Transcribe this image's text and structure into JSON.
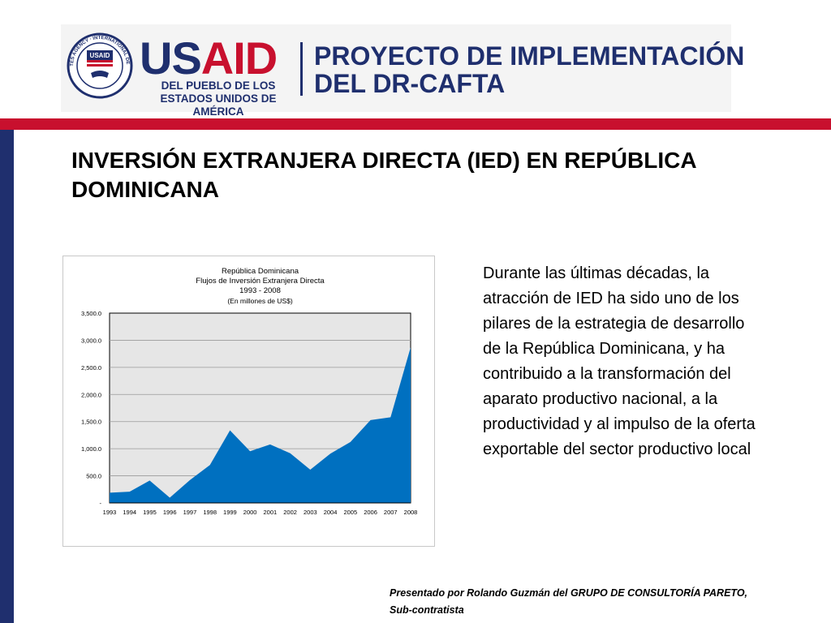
{
  "header": {
    "seal_text": "UNITED STATES AGENCY · INTERNATIONAL DEVELOPMENT",
    "seal_inner": "USAID",
    "logo_us": "US",
    "logo_aid": "AID",
    "logo_tagline": "DEL PUEBLO DE LOS ESTADOS UNIDOS DE AMÉRICA",
    "project_line1": "PROYECTO DE IMPLEMENTACIÓN",
    "project_line2": "DEL DR-CAFTA"
  },
  "slide": {
    "title": "INVERSIÓN EXTRANJERA DIRECTA (IED) EN REPÚBLICA DOMINICANA",
    "body": "Durante las últimas décadas, la atracción de IED ha sido uno de los pilares de la estrategia de desarrollo de la República Dominicana, y ha contribuido  a la transformación del aparato productivo nacional, a la productividad y al impulso de la oferta exportable del sector productivo local",
    "footer_line1": "Presentado por Rolando Guzmán del GRUPO DE CONSULTORÍA PARETO,",
    "footer_line2": "Sub-contratista"
  },
  "colors": {
    "brand_blue": "#1f2f6e",
    "brand_red": "#c8102e",
    "area_fill": "#0070c0",
    "plot_bg": "#e6e6e6"
  },
  "chart_data": {
    "type": "area",
    "title_lines": [
      "República Dominicana",
      "Flujos de Inversión Extranjera Directa",
      "1993 - 2008",
      "(En millones de US$)"
    ],
    "categories": [
      "1993",
      "1994",
      "1995",
      "1996",
      "1997",
      "1998",
      "1999",
      "2000",
      "2001",
      "2002",
      "2003",
      "2004",
      "2005",
      "2006",
      "2007",
      "2008"
    ],
    "values": [
      189,
      207,
      414,
      97,
      421,
      700,
      1338,
      953,
      1079,
      917,
      613,
      909,
      1123,
      1528,
      1579,
      2870
    ],
    "ylim": [
      0,
      3500
    ],
    "yticks": [
      "-",
      "500.0",
      "1,000.0",
      "1,500.0",
      "2,000.0",
      "2,500.0",
      "3,000.0",
      "3,500.0"
    ],
    "ytick_values": [
      0,
      500,
      1000,
      1500,
      2000,
      2500,
      3000,
      3500
    ],
    "grid": true
  }
}
